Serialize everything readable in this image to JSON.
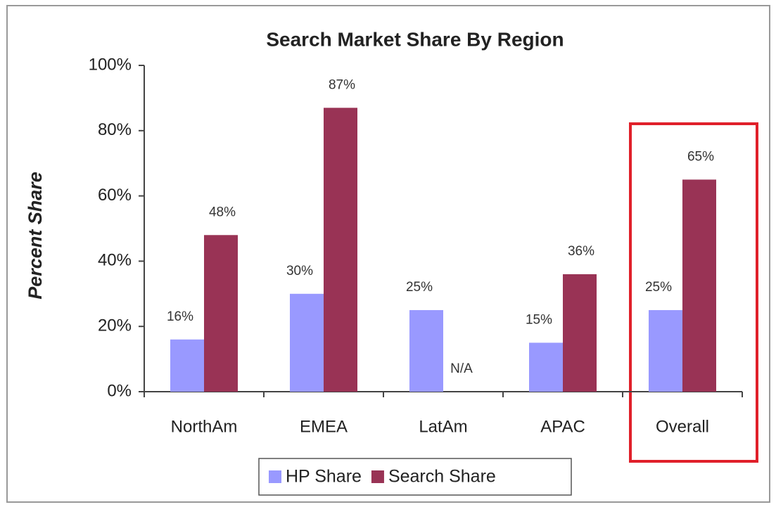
{
  "chart_data": {
    "type": "bar",
    "title": "Search Market Share By Region",
    "ylabel": "Percent Share",
    "categories": [
      "NorthAm",
      "EMEA",
      "LatAm",
      "APAC",
      "Overall"
    ],
    "series": [
      {
        "name": "HP Share",
        "color": "#9999ff",
        "values": [
          16,
          30,
          25,
          15,
          25
        ],
        "value_labels": [
          "16%",
          "30%",
          "25%",
          "15%",
          "25%"
        ]
      },
      {
        "name": "Search Share",
        "color": "#993355",
        "values": [
          48,
          87,
          null,
          36,
          65
        ],
        "value_labels": [
          "48%",
          "87%",
          "N/A",
          "36%",
          "65%"
        ]
      }
    ],
    "ylim": [
      0,
      100
    ],
    "yticks": [
      {
        "value": 0,
        "label": "0%"
      },
      {
        "value": 20,
        "label": "20%"
      },
      {
        "value": 40,
        "label": "40%"
      },
      {
        "value": 60,
        "label": "60%"
      },
      {
        "value": 80,
        "label": "80%"
      },
      {
        "value": 100,
        "label": "100%"
      }
    ],
    "legend": "bottom"
  }
}
